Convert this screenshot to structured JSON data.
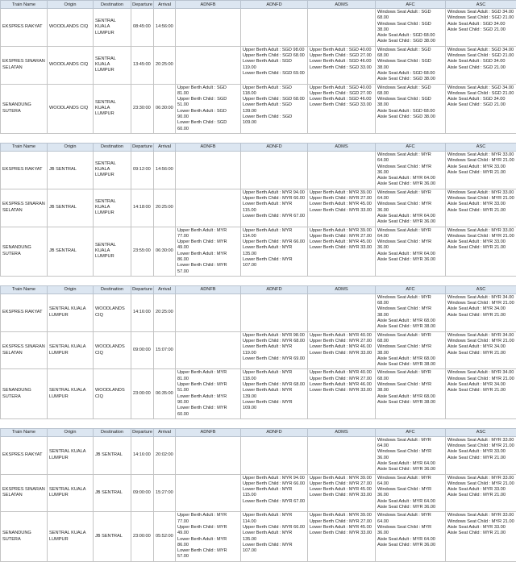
{
  "tables": [
    {
      "header": [
        "Train Name",
        "Origin",
        "Destination",
        "Departure",
        "Arrival",
        "ADNFB",
        "ADNFD",
        "ADMS",
        "AFC",
        "ASC"
      ],
      "rows": [
        [
          "EKSPRES RAKYAT",
          "WOODLANDS CIQ",
          "SENTRAL KUALA LUMPUR",
          "08:45:00",
          "14:56:00",
          [],
          [],
          [],
          [
            "Windows Seat Adult : SGD 68.00",
            "Windows Seat Child : SGD 38.00",
            "Aisle Seat Adult : SGD 68.00",
            "Aisle Seat Child : SGD 38.00"
          ],
          [
            "Windows Seat Adult : SGD 34.00",
            "Windows Seat Child : SGD 21.00",
            "Aisle Seat Adult : SGD 34.00",
            "Aisle Seat Child : SGD 21.00"
          ]
        ],
        [
          "EKSPRES SINARAN SELATAN",
          "WOODLANDS CIQ",
          "SENTRAL KUALA LUMPUR",
          "13:45:00",
          "20:25:00",
          [],
          [
            "Upper Berth Adult : SGD 98.00",
            "Upper Berth Child : SGD 68.00",
            "Lower Berth Adult : SGD 119.00",
            "Lower Berth Child : SGD 69.00"
          ],
          [
            "Upper Berth Adult : SGD 40.00",
            "Upper Berth Child : SGD 27.00",
            "Lower Berth Adult : SGD 46.00",
            "Lower Berth Child : SGD 33.00"
          ],
          [
            "Windows Seat Adult : SGD 68.00",
            "Windows Seat Child : SGD 38.00",
            "Aisle Seat Adult : SGD 68.00",
            "Aisle Seat Child : SGD 38.00"
          ],
          [
            "Windows Seat Adult : SGD 34.00",
            "Windows Seat Child : SGD 21.00",
            "Aisle Seat Adult : SGD 34.00",
            "Aisle Seat Child : SGD 21.00"
          ]
        ],
        [
          "SENANDUNG SUTERA",
          "WOODLANDS CIQ",
          "SENTRAL KUALA LUMPUR",
          "23:30:00",
          "06:30:00",
          [
            "Upper Berth Adult : SGD 81.00",
            "Upper Berth Child : SGD 51.00",
            "Lower Berth Adult : SGD 90.00",
            "Lower Berth Child : SGD 60.00"
          ],
          [
            "Upper Berth Adult : SGD 118.00",
            "Upper Berth Child : SGD 68.00",
            "Lower Berth Adult : SGD 139.00",
            "Lower Berth Child : SGD 109.00"
          ],
          [
            "Upper Berth Adult : SGD 40.00",
            "Upper Berth Child : SGD 27.00",
            "Lower Berth Adult : SGD 46.00",
            "Lower Berth Child : SGD 33.00"
          ],
          [
            "Windows Seat Adult : SGD 68.00",
            "Windows Seat Child : SGD 38.00",
            "Aisle Seat Adult : SGD 68.00",
            "Aisle Seat Child : SGD 38.00"
          ],
          [
            "Windows Seat Adult : SGD 34.00",
            "Windows Seat Child : SGD 21.00",
            "Aisle Seat Adult : SGD 34.00",
            "Aisle Seat Child : SGD 21.00"
          ]
        ]
      ]
    },
    {
      "header": [
        "Train Name",
        "Origin",
        "Destination",
        "Departure",
        "Arrival",
        "ADNFB",
        "ADNFD",
        "ADMS",
        "AFC",
        "ASC"
      ],
      "rows": [
        [
          "EKSPRES RAKYAT",
          "JB SENTRAL",
          "SENTRAL KUALA LUMPUR",
          "09:12:00",
          "14:56:00",
          [],
          [],
          [],
          [
            "Windows Seat Adult : MYR 64.00",
            "Windows Seat Child : MYR 36.00",
            "Aisle Seat Adult : MYR 64.00",
            "Aisle Seat Child : MYR 36.00"
          ],
          [
            "Windows Seat Adult : MYR 33.00",
            "Windows Seat Child : MYR 21.00",
            "Aisle Seat Adult : MYR 33.00",
            "Aisle Seat Child : MYR 21.00"
          ]
        ],
        [
          "EKSPRES SINARAN SELATAN",
          "JB SENTRAL",
          "SENTRAL KUALA LUMPUR",
          "14:18:00",
          "20:25:00",
          [],
          [
            "Upper Berth Adult : MYR 94.00",
            "Upper Berth Child : MYR 66.00",
            "Lower Berth Adult : MYR 115.00",
            "Lower Berth Child : MYR 67.00"
          ],
          [
            "Upper Berth Adult : MYR 39.00",
            "Upper Berth Child : MYR 27.00",
            "Lower Berth Adult : MYR 45.00",
            "Lower Berth Child : MYR 33.00"
          ],
          [
            "Windows Seat Adult : MYR 64.00",
            "Windows Seat Child : MYR 36.00",
            "Aisle Seat Adult : MYR 64.00",
            "Aisle Seat Child : MYR 36.00"
          ],
          [
            "Windows Seat Adult : MYR 33.00",
            "Windows Seat Child : MYR 21.00",
            "Aisle Seat Adult : MYR 33.00",
            "Aisle Seat Child : MYR 21.00"
          ]
        ],
        [
          "SENANDUNG SUTERA",
          "JB SENTRAL",
          "SENTRAL KUALA LUMPUR",
          "23:55:00",
          "06:30:00",
          [
            "Upper Berth Adult : MYR 77.00",
            "Upper Berth Child : MYR 49.00",
            "Lower Berth Adult : MYR 86.00",
            "Lower Berth Child : MYR 57.00"
          ],
          [
            "Upper Berth Adult : MYR 114.00",
            "Upper Berth Child : MYR 66.00",
            "Lower Berth Adult : MYR 135.00",
            "Lower Berth Child : MYR 107.00"
          ],
          [
            "Upper Berth Adult : MYR 39.00",
            "Upper Berth Child : MYR 27.00",
            "Lower Berth Adult : MYR 45.00",
            "Lower Berth Child : MYR 33.00"
          ],
          [
            "Windows Seat Adult : MYR 64.00",
            "Windows Seat Child : MYR 36.00",
            "Aisle Seat Adult : MYR 64.00",
            "Aisle Seat Child : MYR 36.00"
          ],
          [
            "Windows Seat Adult : MYR 33.00",
            "Windows Seat Child : MYR 21.00",
            "Aisle Seat Adult : MYR 33.00",
            "Aisle Seat Child : MYR 21.00"
          ]
        ]
      ]
    },
    {
      "header": [
        "Train Name",
        "Origin",
        "Destination",
        "Departure",
        "Arrival",
        "ADNFB",
        "ADNFD",
        "ADMS",
        "AFC",
        "ASC"
      ],
      "rows": [
        [
          "EKSPRES RAKYAT",
          "SENTRAL KUALA LUMPUR",
          "WOODLANDS CIQ",
          "14:16:00",
          "20:25:00",
          [],
          [],
          [],
          [
            "Windows Seat Adult : MYR 68.00",
            "Windows Seat Child : MYR 38.00",
            "Aisle Seat Adult : MYR 68.00",
            "Aisle Seat Child : MYR 38.00"
          ],
          [
            "Windows Seat Adult : MYR 34.00",
            "Windows Seat Child : MYR 21.00",
            "Aisle Seat Adult : MYR 34.00",
            "Aisle Seat Child : MYR 21.00"
          ]
        ],
        [
          "EKSPRES SINARAN SELATAN",
          "SENTRAL KUALA LUMPUR",
          "WOODLANDS CIQ",
          "09:00:00",
          "15:07:00",
          [],
          [
            "Upper Berth Adult : MYR 98.00",
            "Upper Berth Child : MYR 68.00",
            "Lower Berth Adult : MYR 119.00",
            "Lower Berth Child : MYR 69.00"
          ],
          [
            "Upper Berth Adult : MYR 40.00",
            "Upper Berth Child : MYR 27.00",
            "Lower Berth Adult : MYR 46.00",
            "Lower Berth Child : MYR 33.00"
          ],
          [
            "Windows Seat Adult : MYR 68.00",
            "Windows Seat Child : MYR 38.00",
            "Aisle Seat Adult : MYR 68.00",
            "Aisle Seat Child : MYR 38.00"
          ],
          [
            "Windows Seat Adult : MYR 34.00",
            "Windows Seat Child : MYR 21.00",
            "Aisle Seat Adult : MYR 34.00",
            "Aisle Seat Child : MYR 21.00"
          ]
        ],
        [
          "SENANDUNG SUTERA",
          "SENTRAL KUALA LUMPUR",
          "WOODLANDS CIQ",
          "23:00:00",
          "06:35:00",
          [
            "Upper Berth Adult : MYR 81.00",
            "Upper Berth Child : MYR 51.00",
            "Lower Berth Adult : MYR 90.00",
            "Lower Berth Child : MYR 60.00"
          ],
          [
            "Upper Berth Adult : MYR 118.00",
            "Upper Berth Child : MYR 68.00",
            "Lower Berth Adult : MYR 139.00",
            "Lower Berth Child : MYR 109.00"
          ],
          [
            "Upper Berth Adult : MYR 40.00",
            "Upper Berth Child : MYR 27.00",
            "Lower Berth Adult : MYR 46.00",
            "Lower Berth Child : MYR 33.00"
          ],
          [
            "Windows Seat Adult : MYR 68.00",
            "Windows Seat Child : MYR 38.00",
            "Aisle Seat Adult : MYR 68.00",
            "Aisle Seat Child : MYR 38.00"
          ],
          [
            "Windows Seat Adult : MYR 34.00",
            "Windows Seat Child : MYR 21.00",
            "Aisle Seat Adult : MYR 34.00",
            "Aisle Seat Child : MYR 21.00"
          ]
        ]
      ]
    },
    {
      "header": [
        "Train Name",
        "Origin",
        "Destination",
        "Departure",
        "Arrival",
        "ADNFB",
        "ADNFD",
        "ADMS",
        "AFC",
        "ASC"
      ],
      "rows": [
        [
          "EKSPRES RAKYAT",
          "SENTRAL KUALA LUMPUR",
          "JB SENTRAL",
          "14:16:00",
          "20:02:00",
          [],
          [],
          [],
          [
            "Windows Seat Adult : MYR 64.00",
            "Windows Seat Child : MYR 36.00",
            "Aisle Seat Adult : MYR 64.00",
            "Aisle Seat Child : MYR 36.00"
          ],
          [
            "Windows Seat Adult : MYR 33.00",
            "Windows Seat Child : MYR 21.00",
            "Aisle Seat Adult : MYR 33.00",
            "Aisle Seat Child : MYR 21.00"
          ]
        ],
        [
          "EKSPRES SINARAN SELATAN",
          "SENTRAL KUALA LUMPUR",
          "JB SENTRAL",
          "09:00:00",
          "15:27:00",
          [],
          [
            "Upper Berth Adult : MYR 94.00",
            "Upper Berth Child : MYR 66.00",
            "Lower Berth Adult : MYR 115.00",
            "Lower Berth Child : MYR 67.00"
          ],
          [
            "Upper Berth Adult : MYR 39.00",
            "Upper Berth Child : MYR 27.00",
            "Lower Berth Adult : MYR 45.00",
            "Lower Berth Child : MYR 33.00"
          ],
          [
            "Windows Seat Adult : MYR 64.00",
            "Windows Seat Child : MYR 36.00",
            "Aisle Seat Adult : MYR 64.00",
            "Aisle Seat Child : MYR 36.00"
          ],
          [
            "Windows Seat Adult : MYR 33.00",
            "Windows Seat Child : MYR 21.00",
            "Aisle Seat Adult : MYR 33.00",
            "Aisle Seat Child : MYR 21.00"
          ]
        ],
        [
          "SENANDUNG SUTERA",
          "SENTRAL KUALA LUMPUR",
          "JB SENTRAL",
          "23:00:00",
          "05:52:00",
          [
            "Upper Berth Adult : MYR 77.00",
            "Upper Berth Child : MYR 49.00",
            "Lower Berth Adult : MYR 86.00",
            "Lower Berth Child : MYR 57.00"
          ],
          [
            "Upper Berth Adult : MYR 114.00",
            "Upper Berth Child : MYR 66.00",
            "Lower Berth Adult : MYR 135.00",
            "Lower Berth Child : MYR 107.00"
          ],
          [
            "Upper Berth Adult : MYR 39.00",
            "Upper Berth Child : MYR 27.00",
            "Lower Berth Adult : MYR 45.00",
            "Lower Berth Child : MYR 33.00"
          ],
          [
            "Windows Seat Adult : MYR 64.00",
            "Windows Seat Child : MYR 36.00",
            "Aisle Seat Adult : MYR 64.00",
            "Aisle Seat Child : MYR 36.00"
          ],
          [
            "Windows Seat Adult : MYR 33.00",
            "Windows Seat Child : MYR 21.00",
            "Aisle Seat Adult : MYR 33.00",
            "Aisle Seat Child : MYR 21.00"
          ]
        ]
      ]
    }
  ]
}
